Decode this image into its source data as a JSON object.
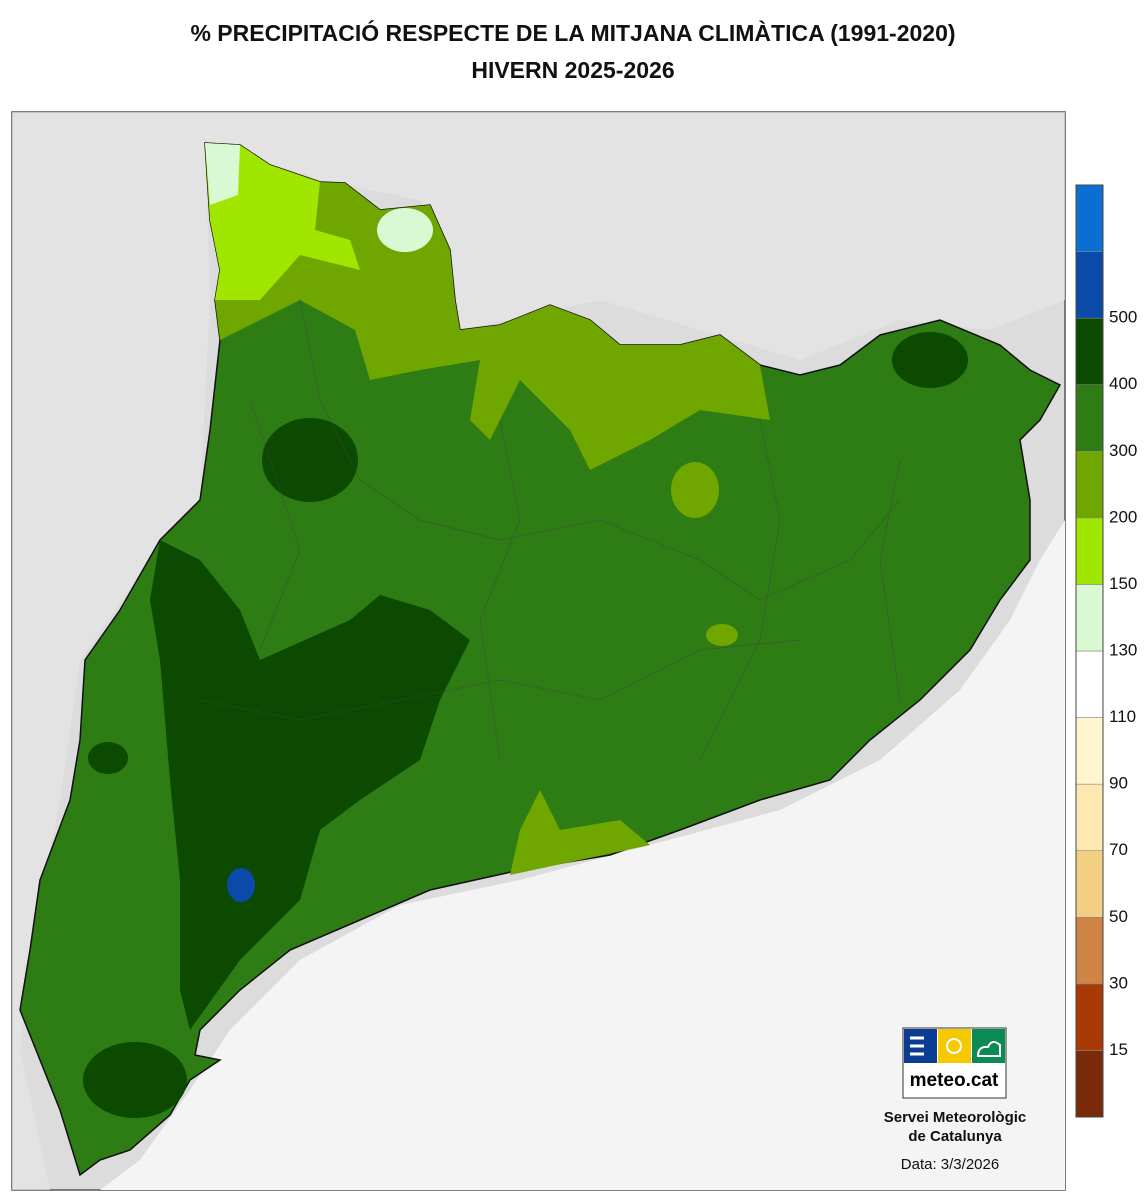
{
  "header": {
    "title": "% PRECIPITACIÓ RESPECTE DE LA MITJANA CLIMÀTICA (1991-2020)",
    "subtitle": "HIVERN 2025-2026"
  },
  "legend": {
    "colors": [
      "#7a2a08",
      "#a83a06",
      "#cf8446",
      "#f2cf82",
      "#fde9b0",
      "#fff5cf",
      "#ffffff",
      "#d9f9d2",
      "#a0e600",
      "#70a600",
      "#2e7c14",
      "#0b4a00",
      "#0a4aa8",
      "#0a6ed2"
    ],
    "thresholds": [
      15,
      30,
      50,
      70,
      90,
      110,
      130,
      150,
      200,
      300,
      400,
      500
    ]
  },
  "logo": {
    "text": "meteo.cat"
  },
  "footer": {
    "line1": "Servei Meteorològic",
    "line2": "de Catalunya",
    "date": "Data: 3/3/2026"
  }
}
